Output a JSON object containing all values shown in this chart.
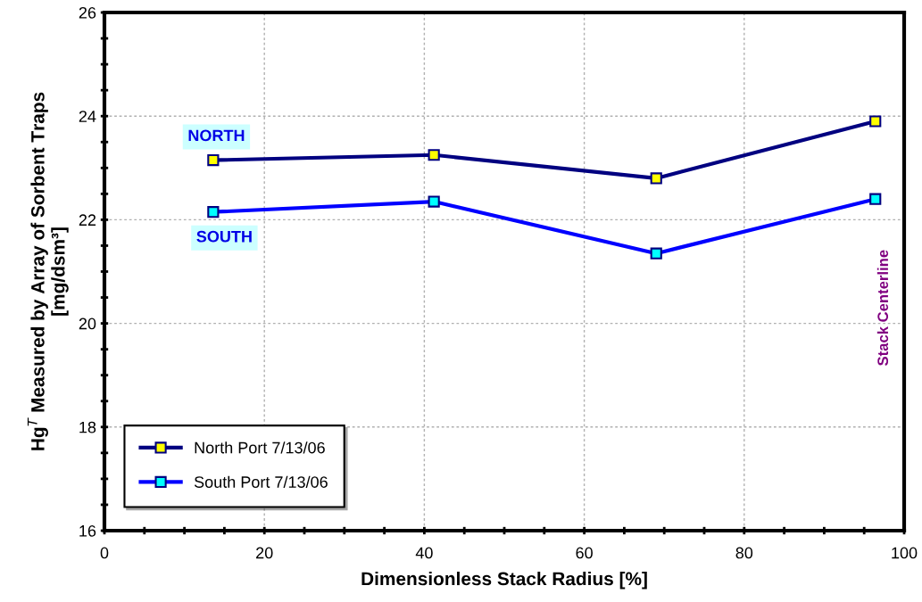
{
  "chart_data": {
    "type": "line",
    "xlabel": "Dimensionless Stack Radius [%]",
    "ylabel": "Hg$^{T}$ Measured by Array of Sorbent Traps\n[mg/dsm³]",
    "x": [
      13.6,
      41.2,
      69.0,
      96.4
    ],
    "series": [
      {
        "name": "North Port 7/13/06",
        "color": "#000080",
        "values": [
          23.15,
          23.25,
          22.8,
          23.9
        ]
      },
      {
        "name": "South Port 7/13/06",
        "color": "#0000ff",
        "values": [
          22.15,
          22.35,
          21.35,
          22.4
        ]
      }
    ],
    "xlim": [
      0,
      100
    ],
    "xticks": [
      0,
      {
        "value": 5,
        "label": null
      },
      {
        "value": 10,
        "label": null
      },
      {
        "value": 15,
        "label": null
      },
      20,
      {
        "value": 25,
        "label": null
      },
      {
        "value": 30,
        "label": null
      },
      {
        "value": 35,
        "label": null
      },
      40,
      {
        "value": 45,
        "label": null
      },
      {
        "value": 50,
        "label": null
      },
      {
        "value": 55,
        "label": null
      },
      60,
      {
        "value": 65,
        "label": null
      },
      {
        "value": 70,
        "label": null
      },
      {
        "value": 75,
        "label": null
      },
      80,
      {
        "value": 85,
        "label": null
      },
      {
        "value": 90,
        "label": null
      },
      {
        "value": 95,
        "label": null
      },
      100
    ],
    "ylim": [
      16,
      26
    ],
    "yticks": [
      16,
      {
        "value": 16.5,
        "label": null
      },
      {
        "value": 17,
        "label": null
      },
      {
        "value": 17.5,
        "label": null
      },
      18,
      {
        "value": 18.5,
        "label": null
      },
      {
        "value": 19,
        "label": null
      },
      {
        "value": 19.5,
        "label": null
      },
      20,
      {
        "value": 20.5,
        "label": null
      },
      {
        "value": 21,
        "label": null
      },
      {
        "value": 21.5,
        "label": null
      },
      22,
      {
        "value": 22.5,
        "label": null
      },
      {
        "value": 23,
        "label": null
      },
      {
        "value": 23.5,
        "label": null
      },
      24,
      {
        "value": 24.5,
        "label": null
      },
      {
        "value": 25,
        "label": null
      },
      {
        "value": 25.5,
        "label": null
      },
      26
    ],
    "marker": "square",
    "line_style": "solid",
    "grid": true,
    "legend": "bottom left",
    "annotations": [
      "NORTH",
      "SOUTH",
      "Stack Centerline"
    ]
  }
}
